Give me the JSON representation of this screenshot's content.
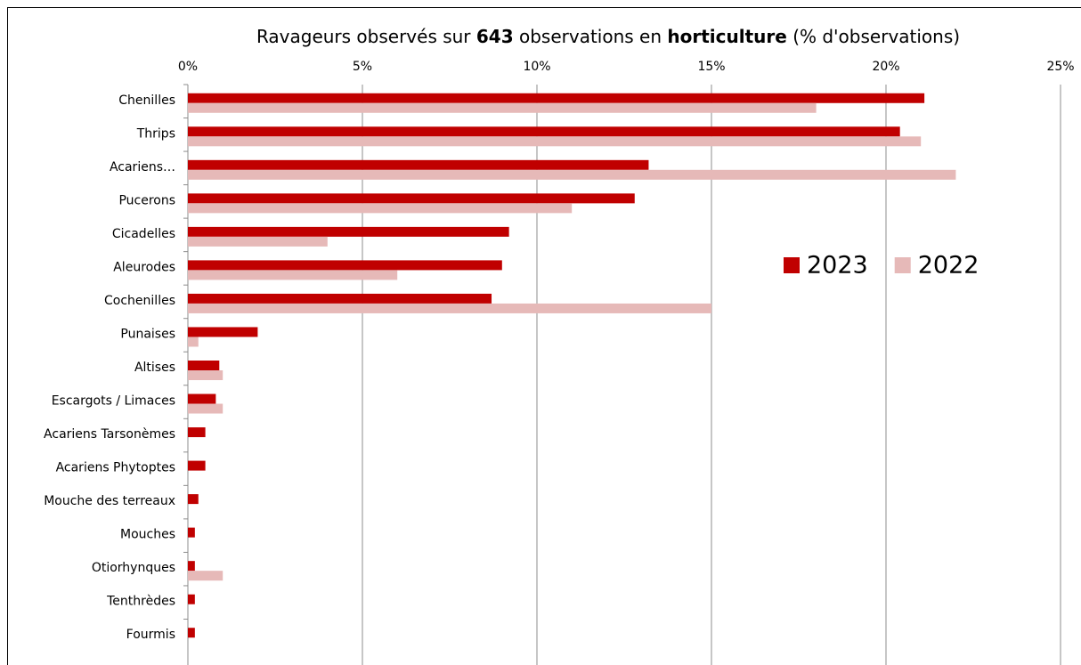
{
  "chart_data": {
    "type": "hbar",
    "title": [
      "Ravageurs observés sur ",
      "643",
      " observations en ",
      "horticulture",
      " (% d'observations)"
    ],
    "title_bold": [
      false,
      true,
      false,
      true,
      false
    ],
    "categories": [
      "Chenilles",
      "Thrips",
      "Acariens…",
      "Pucerons",
      "Cicadelles",
      "Aleurodes",
      "Cochenilles",
      "Punaises",
      "Altises",
      "Escargots / Limaces",
      "Acariens Tarsonèmes",
      "Acariens Phytoptes",
      "Mouche des terreaux",
      "Mouches",
      "Otiorhynques",
      "Tenthrèdes",
      "Fourmis"
    ],
    "series": [
      {
        "name": "2023",
        "color": "#c00000",
        "values": [
          21.1,
          20.4,
          13.2,
          12.8,
          9.2,
          9.0,
          8.7,
          2.0,
          0.9,
          0.8,
          0.5,
          0.5,
          0.3,
          0.2,
          0.2,
          0.2,
          0.2
        ]
      },
      {
        "name": "2022",
        "color": "#e6b9b8",
        "values": [
          18.0,
          21.0,
          22.0,
          11.0,
          4.0,
          6.0,
          15.0,
          0.3,
          1.0,
          1.0,
          0,
          0,
          0,
          0,
          1.0,
          0,
          0
        ]
      }
    ],
    "xlim": [
      0,
      25
    ],
    "xticks": [
      {
        "value": 0,
        "label": "0%"
      },
      {
        "value": 5,
        "label": "5%"
      },
      {
        "value": 10,
        "label": "10%"
      },
      {
        "value": 15,
        "label": "15%"
      },
      {
        "value": 20,
        "label": "20%"
      },
      {
        "value": 25,
        "label": "25%"
      }
    ],
    "grid": true,
    "legend_position": "right"
  }
}
